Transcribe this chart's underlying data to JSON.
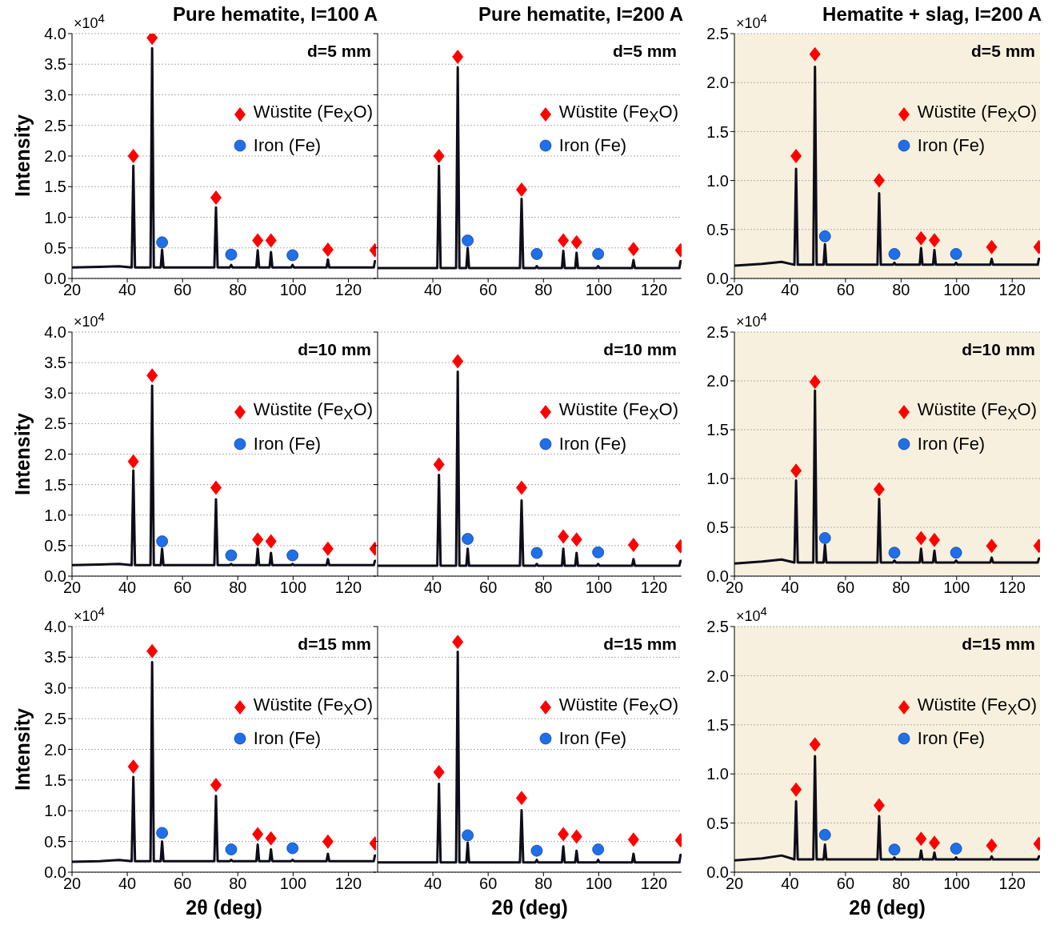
{
  "chart_data": [
    {
      "type": "line",
      "title": "Pure hematite, I=100 A",
      "ylabel": "Intensity",
      "xlim": [
        20,
        130
      ],
      "xticks": [
        20,
        40,
        60,
        80,
        100,
        120
      ],
      "ylim": [
        0,
        4
      ],
      "yticks": [
        {
          "value": 0,
          "label": "0.0"
        },
        {
          "value": 0.5,
          "label": "0.5"
        },
        {
          "value": 1,
          "label": "1.0"
        },
        {
          "value": 1.5,
          "label": "1.5"
        },
        {
          "value": 2,
          "label": "2.0"
        },
        {
          "value": 2.5,
          "label": "2.5"
        },
        {
          "value": 3,
          "label": "3.0"
        },
        {
          "value": 3.5,
          "label": "3.5"
        },
        {
          "value": 4,
          "label": "4.0"
        }
      ],
      "grid": "y",
      "legend": "right",
      "annotations": [
        "d=5 mm",
        "×10$^{4}$"
      ],
      "x": [
        20,
        30,
        37,
        41.6,
        42.2,
        42.8,
        48.4,
        49,
        49.6,
        52.1,
        52.6,
        53.1,
        71.5,
        72.1,
        72.7,
        77.1,
        77.6,
        78.1,
        86.7,
        87.2,
        87.7,
        91.5,
        92,
        92.5,
        99.3,
        99.8,
        100.3,
        112.1,
        112.6,
        113.1,
        129.2,
        129.6,
        130
      ],
      "series": [
        {
          "color": "#0d0d1a",
          "marker": "none",
          "values": [
            0.18,
            0.19,
            0.2,
            0.18,
            1.84,
            0.18,
            0.18,
            3.76,
            0.18,
            0.18,
            0.47,
            0.18,
            0.18,
            1.16,
            0.18,
            0.18,
            0.22,
            0.18,
            0.18,
            0.46,
            0.18,
            0.18,
            0.43,
            0.18,
            0.18,
            0.22,
            0.18,
            0.18,
            0.31,
            0.18,
            0.18,
            0.28,
            0.28
          ]
        },
        {
          "type": "scatter",
          "name": "Wüstite (Fe$_{X}$O)",
          "color": "#ff0000",
          "marker": "diamond",
          "x": [
            42.2,
            49,
            72.1,
            87.2,
            92,
            112.6,
            129.6
          ],
          "values": [
            2.0,
            3.93,
            1.32,
            0.62,
            0.62,
            0.47,
            0.46
          ]
        },
        {
          "type": "scatter",
          "name": "Iron (Fe)",
          "color": "#1f6fe8",
          "marker": "circle",
          "x": [
            52.6,
            77.6,
            99.8
          ],
          "values": [
            0.59,
            0.39,
            0.38
          ]
        }
      ]
    },
    {
      "type": "line",
      "title": "Pure hematite, I=200 A",
      "xlim": [
        20,
        130
      ],
      "xticks": [
        40,
        60,
        80,
        100,
        120
      ],
      "ylim": [
        0,
        4
      ],
      "yticks": [
        0,
        0.5,
        1,
        1.5,
        2,
        2.5,
        3,
        3.5,
        4
      ],
      "grid": "y",
      "legend": "right",
      "tick_labels": "x",
      "annotations": [
        "d=5 mm"
      ],
      "x": [
        20,
        30,
        37,
        41.6,
        42.2,
        42.8,
        48.4,
        49,
        49.6,
        52.1,
        52.6,
        53.1,
        71.5,
        72.1,
        72.7,
        77.1,
        77.6,
        78.1,
        86.7,
        87.2,
        87.7,
        91.5,
        92,
        92.5,
        99.3,
        99.8,
        100.3,
        112.1,
        112.6,
        113.1,
        129.2,
        129.6,
        130
      ],
      "series": [
        {
          "color": "#0d0d1a",
          "marker": "none",
          "values": [
            0.17,
            0.17,
            0.17,
            0.17,
            1.84,
            0.17,
            0.17,
            3.45,
            0.17,
            0.17,
            0.5,
            0.17,
            0.17,
            1.3,
            0.17,
            0.17,
            0.2,
            0.17,
            0.17,
            0.45,
            0.17,
            0.17,
            0.42,
            0.17,
            0.17,
            0.2,
            0.17,
            0.17,
            0.3,
            0.17,
            0.17,
            0.28,
            0.28
          ]
        },
        {
          "type": "scatter",
          "name": "Wüstite (Fe$_{X}$O)",
          "color": "#ff0000",
          "marker": "diamond",
          "x": [
            42.2,
            49,
            72.1,
            87.2,
            92,
            112.6,
            129.6
          ],
          "values": [
            2.0,
            3.62,
            1.45,
            0.62,
            0.59,
            0.48,
            0.46
          ]
        },
        {
          "type": "scatter",
          "name": "Iron (Fe)",
          "color": "#1f6fe8",
          "marker": "circle",
          "x": [
            52.6,
            77.6,
            99.8
          ],
          "values": [
            0.62,
            0.4,
            0.4
          ]
        }
      ]
    },
    {
      "type": "line",
      "title": "Hematite + slag, I=200 A",
      "xlim": [
        20,
        130
      ],
      "xticks": [
        20,
        40,
        60,
        80,
        100,
        120
      ],
      "ylim": [
        0,
        2.5
      ],
      "yticks": [
        {
          "value": 0,
          "label": "0.0"
        },
        {
          "value": 0.5,
          "label": "0.5"
        },
        {
          "value": 1,
          "label": "1.0"
        },
        {
          "value": 1.5,
          "label": "1.5"
        },
        {
          "value": 2,
          "label": "2.0"
        },
        {
          "value": 2.5,
          "label": "2.5"
        }
      ],
      "grid": "y",
      "legend": "right",
      "annotations": [
        "d=5 mm",
        "×10$^{4}$"
      ],
      "x": [
        20,
        30,
        37,
        41.6,
        42.2,
        42.8,
        48.4,
        49,
        49.6,
        52.1,
        52.6,
        53.1,
        71.5,
        72.1,
        72.7,
        77.1,
        77.6,
        78.1,
        86.7,
        87.2,
        87.7,
        91.5,
        92,
        92.5,
        99.3,
        99.8,
        100.3,
        112.1,
        112.6,
        113.1,
        129.2,
        129.6,
        130
      ],
      "series": [
        {
          "color": "#0d0d1a",
          "marker": "none",
          "values": [
            0.13,
            0.15,
            0.17,
            0.14,
            1.12,
            0.14,
            0.14,
            2.16,
            0.14,
            0.14,
            0.35,
            0.14,
            0.14,
            0.87,
            0.14,
            0.14,
            0.16,
            0.14,
            0.14,
            0.31,
            0.14,
            0.14,
            0.29,
            0.14,
            0.14,
            0.16,
            0.14,
            0.14,
            0.2,
            0.14,
            0.14,
            0.2,
            0.2
          ]
        },
        {
          "type": "scatter",
          "name": "Wüstite (Fe$_{X}$O)",
          "color": "#ff0000",
          "marker": "diamond",
          "x": [
            42.2,
            49,
            72.1,
            87.2,
            92,
            112.6,
            129.6
          ],
          "values": [
            1.25,
            2.29,
            1.0,
            0.41,
            0.39,
            0.32,
            0.32
          ]
        },
        {
          "type": "scatter",
          "name": "Iron (Fe)",
          "color": "#1f6fe8",
          "marker": "circle",
          "x": [
            52.6,
            77.6,
            99.8
          ],
          "values": [
            0.43,
            0.25,
            0.25
          ]
        }
      ]
    },
    {
      "type": "line",
      "ylabel": "Intensity",
      "xlim": [
        20,
        130
      ],
      "xticks": [
        20,
        40,
        60,
        80,
        100,
        120
      ],
      "ylim": [
        0,
        4
      ],
      "yticks": [
        {
          "value": 0,
          "label": "0.0"
        },
        {
          "value": 0.5,
          "label": "0.5"
        },
        {
          "value": 1,
          "label": "1.0"
        },
        {
          "value": 1.5,
          "label": "1.5"
        },
        {
          "value": 2,
          "label": "2.0"
        },
        {
          "value": 2.5,
          "label": "2.5"
        },
        {
          "value": 3,
          "label": "3.0"
        },
        {
          "value": 3.5,
          "label": "3.5"
        },
        {
          "value": 4,
          "label": "4.0"
        }
      ],
      "grid": "y",
      "legend": "right",
      "annotations": [
        "d=10 mm",
        "×10$^{4}$"
      ],
      "x": [
        20,
        30,
        37,
        41.6,
        42.2,
        42.8,
        48.4,
        49,
        49.6,
        52.1,
        52.6,
        53.1,
        71.5,
        72.1,
        72.7,
        77.1,
        77.6,
        78.1,
        86.7,
        87.2,
        87.7,
        91.5,
        92,
        92.5,
        99.3,
        99.8,
        100.3,
        112.1,
        112.6,
        113.1,
        129.2,
        129.6,
        130
      ],
      "series": [
        {
          "color": "#0d0d1a",
          "marker": "none",
          "values": [
            0.18,
            0.19,
            0.2,
            0.18,
            1.73,
            0.18,
            0.18,
            3.12,
            0.18,
            0.18,
            0.45,
            0.18,
            0.18,
            1.26,
            0.18,
            0.18,
            0.2,
            0.18,
            0.18,
            0.45,
            0.18,
            0.18,
            0.38,
            0.18,
            0.18,
            0.2,
            0.18,
            0.18,
            0.28,
            0.18,
            0.18,
            0.25,
            0.25
          ]
        },
        {
          "type": "scatter",
          "name": "Wüstite (Fe$_{X}$O)",
          "color": "#ff0000",
          "marker": "diamond",
          "x": [
            42.2,
            49,
            72.1,
            87.2,
            92,
            112.6,
            129.6
          ],
          "values": [
            1.88,
            3.29,
            1.45,
            0.6,
            0.57,
            0.45,
            0.45
          ]
        },
        {
          "type": "scatter",
          "name": "Iron (Fe)",
          "color": "#1f6fe8",
          "marker": "circle",
          "x": [
            52.6,
            77.6,
            99.8
          ],
          "values": [
            0.57,
            0.34,
            0.34
          ]
        }
      ]
    },
    {
      "type": "line",
      "xlim": [
        20,
        130
      ],
      "xticks": [
        40,
        60,
        80,
        100,
        120
      ],
      "ylim": [
        0,
        4
      ],
      "yticks": [
        0,
        0.5,
        1,
        1.5,
        2,
        2.5,
        3,
        3.5,
        4
      ],
      "grid": "y",
      "legend": "right",
      "tick_labels": "x",
      "annotations": [
        "d=10 mm"
      ],
      "x": [
        20,
        30,
        37,
        41.6,
        42.2,
        42.8,
        48.4,
        49,
        49.6,
        52.1,
        52.6,
        53.1,
        71.5,
        72.1,
        72.7,
        77.1,
        77.6,
        78.1,
        86.7,
        87.2,
        87.7,
        91.5,
        92,
        92.5,
        99.3,
        99.8,
        100.3,
        112.1,
        112.6,
        113.1,
        129.2,
        129.6,
        130
      ],
      "series": [
        {
          "color": "#0d0d1a",
          "marker": "none",
          "values": [
            0.17,
            0.17,
            0.17,
            0.17,
            1.66,
            0.17,
            0.17,
            3.35,
            0.17,
            0.17,
            0.45,
            0.17,
            0.17,
            1.24,
            0.17,
            0.17,
            0.2,
            0.17,
            0.17,
            0.45,
            0.17,
            0.17,
            0.38,
            0.17,
            0.17,
            0.2,
            0.17,
            0.17,
            0.28,
            0.17,
            0.17,
            0.25,
            0.25
          ]
        },
        {
          "type": "scatter",
          "name": "Wüstite (Fe$_{X}$O)",
          "color": "#ff0000",
          "marker": "diamond",
          "x": [
            42.2,
            49,
            72.1,
            87.2,
            92,
            112.6,
            129.6
          ],
          "values": [
            1.83,
            3.52,
            1.45,
            0.65,
            0.6,
            0.51,
            0.49
          ]
        },
        {
          "type": "scatter",
          "name": "Iron (Fe)",
          "color": "#1f6fe8",
          "marker": "circle",
          "x": [
            52.6,
            77.6,
            99.8
          ],
          "values": [
            0.61,
            0.38,
            0.39
          ]
        }
      ]
    },
    {
      "type": "line",
      "xlim": [
        20,
        130
      ],
      "xticks": [
        20,
        40,
        60,
        80,
        100,
        120
      ],
      "ylim": [
        0,
        2.5
      ],
      "yticks": [
        {
          "value": 0,
          "label": "0.0"
        },
        {
          "value": 0.5,
          "label": "0.5"
        },
        {
          "value": 1,
          "label": "1.0"
        },
        {
          "value": 1.5,
          "label": "1.5"
        },
        {
          "value": 2,
          "label": "2.0"
        },
        {
          "value": 2.5,
          "label": "2.5"
        }
      ],
      "grid": "y",
      "legend": "right",
      "annotations": [
        "d=10 mm",
        "×10$^{4}$"
      ],
      "x": [
        20,
        30,
        37,
        41.6,
        42.2,
        42.8,
        48.4,
        49,
        49.6,
        52.1,
        52.6,
        53.1,
        71.5,
        72.1,
        72.7,
        77.1,
        77.6,
        78.1,
        86.7,
        87.2,
        87.7,
        91.5,
        92,
        92.5,
        99.3,
        99.8,
        100.3,
        112.1,
        112.6,
        113.1,
        129.2,
        129.6,
        130
      ],
      "series": [
        {
          "color": "#0d0d1a",
          "marker": "none",
          "values": [
            0.13,
            0.15,
            0.17,
            0.14,
            0.98,
            0.14,
            0.14,
            1.9,
            0.14,
            0.14,
            0.32,
            0.14,
            0.14,
            0.79,
            0.14,
            0.14,
            0.16,
            0.14,
            0.14,
            0.28,
            0.14,
            0.14,
            0.26,
            0.14,
            0.14,
            0.16,
            0.14,
            0.14,
            0.19,
            0.14,
            0.14,
            0.18,
            0.18
          ]
        },
        {
          "type": "scatter",
          "name": "Wüstite (Fe$_{X}$O)",
          "color": "#ff0000",
          "marker": "diamond",
          "x": [
            42.2,
            49,
            72.1,
            87.2,
            92,
            112.6,
            129.6
          ],
          "values": [
            1.08,
            1.99,
            0.89,
            0.39,
            0.37,
            0.31,
            0.31
          ]
        },
        {
          "type": "scatter",
          "name": "Iron (Fe)",
          "color": "#1f6fe8",
          "marker": "circle",
          "x": [
            52.6,
            77.6,
            99.8
          ],
          "values": [
            0.39,
            0.24,
            0.24
          ]
        }
      ]
    },
    {
      "type": "line",
      "xlabel": "2θ (deg)",
      "ylabel": "Intensity",
      "xlim": [
        20,
        130
      ],
      "xticks": [
        20,
        40,
        60,
        80,
        100,
        120
      ],
      "ylim": [
        0,
        4
      ],
      "yticks": [
        {
          "value": 0,
          "label": "0.0"
        },
        {
          "value": 0.5,
          "label": "0.5"
        },
        {
          "value": 1,
          "label": "1.0"
        },
        {
          "value": 1.5,
          "label": "1.5"
        },
        {
          "value": 2,
          "label": "2.0"
        },
        {
          "value": 2.5,
          "label": "2.5"
        },
        {
          "value": 3,
          "label": "3.0"
        },
        {
          "value": 3.5,
          "label": "3.5"
        },
        {
          "value": 4,
          "label": "4.0"
        }
      ],
      "grid": "y",
      "legend": "right",
      "annotations": [
        "d=15 mm",
        "×10$^{4}$"
      ],
      "x": [
        20,
        30,
        37,
        41.6,
        42.2,
        42.8,
        48.4,
        49,
        49.6,
        52.1,
        52.6,
        53.1,
        71.5,
        72.1,
        72.7,
        77.1,
        77.6,
        78.1,
        86.7,
        87.2,
        87.7,
        91.5,
        92,
        92.5,
        99.3,
        99.8,
        100.3,
        112.1,
        112.6,
        113.1,
        129.2,
        129.6,
        130
      ],
      "series": [
        {
          "color": "#0d0d1a",
          "marker": "none",
          "values": [
            0.17,
            0.18,
            0.2,
            0.18,
            1.55,
            0.18,
            0.18,
            3.42,
            0.18,
            0.18,
            0.5,
            0.18,
            0.18,
            1.24,
            0.18,
            0.18,
            0.2,
            0.18,
            0.18,
            0.45,
            0.18,
            0.18,
            0.37,
            0.18,
            0.18,
            0.2,
            0.18,
            0.18,
            0.3,
            0.18,
            0.18,
            0.27,
            0.27
          ]
        },
        {
          "type": "scatter",
          "name": "Wüstite (Fe$_{X}$O)",
          "color": "#ff0000",
          "marker": "diamond",
          "x": [
            42.2,
            49,
            72.1,
            87.2,
            92,
            112.6,
            129.6
          ],
          "values": [
            1.72,
            3.6,
            1.42,
            0.62,
            0.55,
            0.5,
            0.47
          ]
        },
        {
          "type": "scatter",
          "name": "Iron (Fe)",
          "color": "#1f6fe8",
          "marker": "circle",
          "x": [
            52.6,
            77.6,
            99.8
          ],
          "values": [
            0.64,
            0.37,
            0.39
          ]
        }
      ]
    },
    {
      "type": "line",
      "xlabel": "2θ (deg)",
      "xlim": [
        20,
        130
      ],
      "xticks": [
        40,
        60,
        80,
        100,
        120
      ],
      "ylim": [
        0,
        4
      ],
      "yticks": [
        0,
        0.5,
        1,
        1.5,
        2,
        2.5,
        3,
        3.5,
        4
      ],
      "grid": "y",
      "legend": "right",
      "tick_labels": "x",
      "annotations": [
        "d=15 mm"
      ],
      "x": [
        20,
        30,
        37,
        41.6,
        42.2,
        42.8,
        48.4,
        49,
        49.6,
        52.1,
        52.6,
        53.1,
        71.5,
        72.1,
        72.7,
        77.1,
        77.6,
        78.1,
        86.7,
        87.2,
        87.7,
        91.5,
        92,
        92.5,
        99.3,
        99.8,
        100.3,
        112.1,
        112.6,
        113.1,
        129.2,
        129.6,
        130
      ],
      "series": [
        {
          "color": "#0d0d1a",
          "marker": "none",
          "values": [
            0.16,
            0.16,
            0.16,
            0.16,
            1.44,
            0.16,
            0.16,
            3.59,
            0.16,
            0.16,
            0.48,
            0.16,
            0.16,
            1.01,
            0.16,
            0.16,
            0.2,
            0.16,
            0.16,
            0.42,
            0.16,
            0.16,
            0.35,
            0.16,
            0.16,
            0.2,
            0.16,
            0.16,
            0.3,
            0.16,
            0.16,
            0.28,
            0.28
          ]
        },
        {
          "type": "scatter",
          "name": "Wüstite (Fe$_{X}$O)",
          "color": "#ff0000",
          "marker": "diamond",
          "x": [
            42.2,
            49,
            72.1,
            87.2,
            92,
            112.6,
            129.6
          ],
          "values": [
            1.63,
            3.75,
            1.21,
            0.62,
            0.58,
            0.53,
            0.52
          ]
        },
        {
          "type": "scatter",
          "name": "Iron (Fe)",
          "color": "#1f6fe8",
          "marker": "circle",
          "x": [
            52.6,
            77.6,
            99.8
          ],
          "values": [
            0.6,
            0.35,
            0.37
          ]
        }
      ]
    },
    {
      "type": "line",
      "xlabel": "2θ (deg)",
      "xlim": [
        20,
        130
      ],
      "xticks": [
        20,
        40,
        60,
        80,
        100,
        120
      ],
      "ylim": [
        0,
        2.5
      ],
      "yticks": [
        {
          "value": 0,
          "label": "0.0"
        },
        {
          "value": 0.5,
          "label": "0.5"
        },
        {
          "value": 1,
          "label": "1.0"
        },
        {
          "value": 1.5,
          "label": "1.5"
        },
        {
          "value": 2,
          "label": "2.0"
        },
        {
          "value": 2.5,
          "label": "2.5"
        }
      ],
      "grid": "y",
      "legend": "right",
      "annotations": [
        "d=15 mm",
        "×10$^{4}$"
      ],
      "x": [
        20,
        30,
        37,
        41.6,
        42.2,
        42.8,
        48.4,
        49,
        49.6,
        52.1,
        52.6,
        53.1,
        71.5,
        72.1,
        72.7,
        77.1,
        77.6,
        78.1,
        86.7,
        87.2,
        87.7,
        91.5,
        92,
        92.5,
        99.3,
        99.8,
        100.3,
        112.1,
        112.6,
        113.1,
        129.2,
        129.6,
        130
      ],
      "series": [
        {
          "color": "#0d0d1a",
          "marker": "none",
          "values": [
            0.12,
            0.14,
            0.17,
            0.13,
            0.72,
            0.13,
            0.13,
            1.18,
            0.13,
            0.13,
            0.28,
            0.13,
            0.13,
            0.57,
            0.13,
            0.13,
            0.15,
            0.13,
            0.13,
            0.22,
            0.13,
            0.13,
            0.2,
            0.13,
            0.13,
            0.15,
            0.13,
            0.13,
            0.16,
            0.13,
            0.13,
            0.16,
            0.16
          ]
        },
        {
          "type": "scatter",
          "name": "Wüstite (Fe$_{X}$O)",
          "color": "#ff0000",
          "marker": "diamond",
          "x": [
            42.2,
            49,
            72.1,
            87.2,
            92,
            112.6,
            129.6
          ],
          "values": [
            0.84,
            1.3,
            0.68,
            0.34,
            0.3,
            0.27,
            0.29
          ]
        },
        {
          "type": "scatter",
          "name": "Iron (Fe)",
          "color": "#1f6fe8",
          "marker": "circle",
          "x": [
            52.6,
            77.6,
            99.8
          ],
          "values": [
            0.38,
            0.23,
            0.24
          ]
        }
      ]
    }
  ]
}
